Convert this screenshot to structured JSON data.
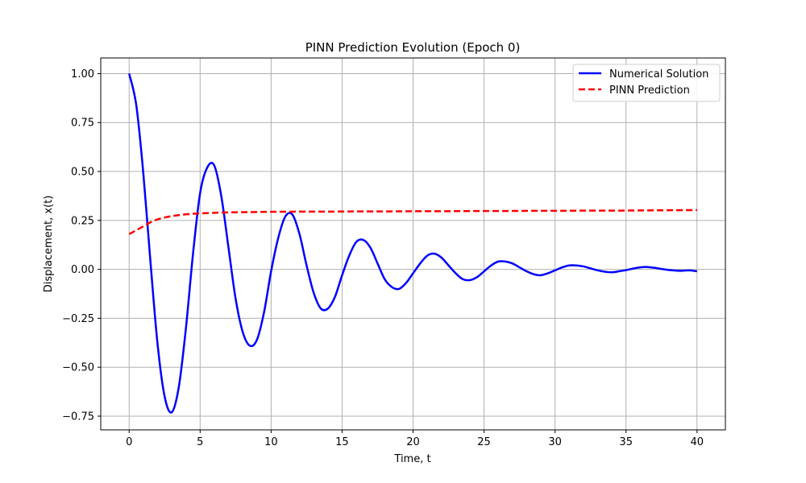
{
  "chart_data": {
    "type": "line",
    "title": "PINN Prediction Evolution (Epoch 0)",
    "xlabel": "Time, t",
    "ylabel": "Displacement, x(t)",
    "xlim": [
      -2,
      42
    ],
    "ylim": [
      -0.82,
      1.08
    ],
    "xticks": [
      0,
      5,
      10,
      15,
      20,
      25,
      30,
      35,
      40
    ],
    "yticks": [
      -0.75,
      -0.5,
      -0.25,
      0.0,
      0.25,
      0.5,
      0.75,
      1.0
    ],
    "xtick_labels": [
      "0",
      "5",
      "10",
      "15",
      "20",
      "25",
      "30",
      "35",
      "40"
    ],
    "ytick_labels": [
      "−0.75",
      "−0.50",
      "−0.25",
      "0.00",
      "0.25",
      "0.50",
      "0.75",
      "1.00"
    ],
    "grid": true,
    "legend_position": "top-right",
    "series": [
      {
        "name": "Numerical Solution",
        "color": "#0000ff",
        "style": "solid",
        "x": [
          0,
          0.5,
          1,
          1.5,
          2,
          2.5,
          3,
          3.5,
          4,
          4.5,
          5,
          5.5,
          6,
          6.5,
          7,
          7.5,
          8,
          8.5,
          9,
          9.5,
          10,
          10.5,
          11,
          11.5,
          12,
          12.5,
          13,
          13.5,
          14,
          14.5,
          15,
          15.5,
          16,
          16.5,
          17,
          17.5,
          18,
          18.5,
          19,
          19.5,
          20,
          20.5,
          21,
          21.5,
          22,
          22.5,
          23,
          23.5,
          24,
          24.5,
          25,
          25.5,
          26,
          26.5,
          27,
          27.5,
          28,
          28.5,
          29,
          29.5,
          30,
          30.5,
          31,
          31.5,
          32,
          32.5,
          33,
          33.5,
          34,
          34.5,
          35,
          35.5,
          36,
          36.5,
          37,
          37.5,
          38,
          38.5,
          39,
          39.5,
          40
        ],
        "y": [
          1.0,
          0.84,
          0.49,
          0.04,
          -0.38,
          -0.65,
          -0.73,
          -0.6,
          -0.3,
          0.08,
          0.39,
          0.52,
          0.53,
          0.37,
          0.11,
          -0.15,
          -0.32,
          -0.39,
          -0.36,
          -0.22,
          -0.01,
          0.16,
          0.27,
          0.28,
          0.18,
          0.02,
          -0.12,
          -0.2,
          -0.2,
          -0.14,
          -0.03,
          0.07,
          0.14,
          0.15,
          0.11,
          0.03,
          -0.05,
          -0.09,
          -0.1,
          -0.07,
          -0.02,
          0.03,
          0.07,
          0.08,
          0.06,
          0.02,
          -0.02,
          -0.05,
          -0.055,
          -0.04,
          -0.01,
          0.02,
          0.04,
          0.04,
          0.03,
          0.01,
          -0.01,
          -0.025,
          -0.03,
          -0.02,
          -0.005,
          0.01,
          0.02,
          0.02,
          0.015,
          0.005,
          -0.005,
          -0.012,
          -0.015,
          -0.01,
          -0.004,
          0.004,
          0.01,
          0.012,
          0.008,
          0.002,
          -0.003,
          -0.006,
          -0.007,
          -0.005,
          -0.01
        ]
      },
      {
        "name": "PINN Prediction",
        "color": "#ff0000",
        "style": "dashed",
        "x": [
          0,
          0.5,
          1,
          1.5,
          2,
          2.5,
          3,
          3.5,
          4,
          4.5,
          5,
          6,
          7,
          8,
          9,
          10,
          12,
          14,
          16,
          18,
          20,
          22,
          24,
          26,
          28,
          30,
          32,
          34,
          36,
          38,
          40
        ],
        "y": [
          0.18,
          0.2,
          0.22,
          0.24,
          0.255,
          0.265,
          0.272,
          0.277,
          0.281,
          0.284,
          0.286,
          0.289,
          0.291,
          0.292,
          0.293,
          0.294,
          0.295,
          0.295,
          0.296,
          0.296,
          0.297,
          0.297,
          0.298,
          0.298,
          0.299,
          0.299,
          0.3,
          0.3,
          0.301,
          0.302,
          0.303
        ]
      }
    ]
  }
}
